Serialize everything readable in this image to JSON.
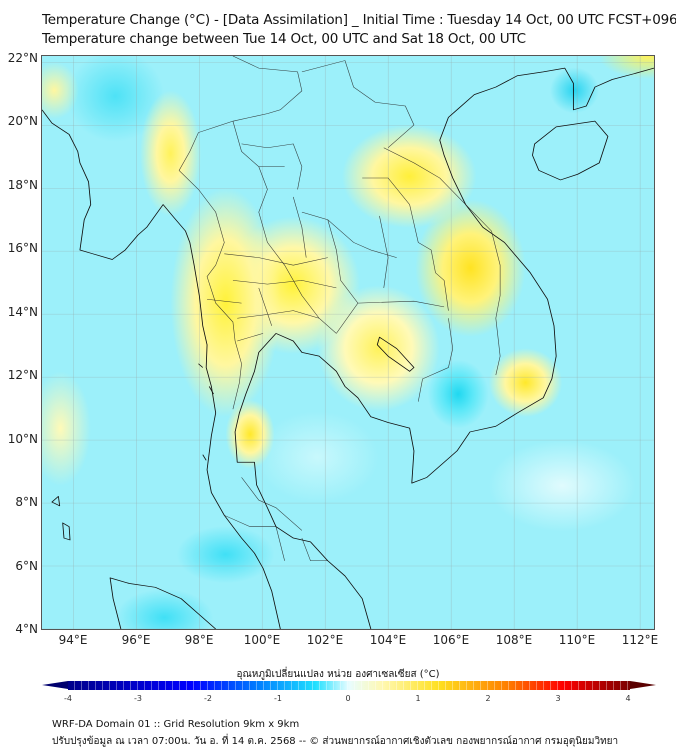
{
  "title": {
    "line1": "Temperature Change (°C) - [Data Assimilation] _ Initial Time : Tuesday 14 Oct, 00 UTC FCST+096",
    "line2": "Temperature change between Tue 14 Oct, 00 UTC and Sat 18 Oct, 00 UTC"
  },
  "map": {
    "lat_labels": [
      "22°N",
      "20°N",
      "18°N",
      "16°N",
      "14°N",
      "12°N",
      "10°N",
      "8°N",
      "6°N",
      "4°N"
    ],
    "lon_labels": [
      "94°E",
      "96°E",
      "98°E",
      "100°E",
      "102°E",
      "104°E",
      "106°E",
      "108°E",
      "110°E",
      "112°E"
    ],
    "lon_range": [
      93,
      112.5
    ],
    "lat_range": [
      4,
      22.2
    ]
  },
  "colorbar": {
    "label": "อุณหภูมิเปลี่ยนแปลง หน่วย องศาเซลเซียส (°C)",
    "ticks": [
      "-4",
      "-3",
      "-2",
      "-1",
      "0",
      "1",
      "2",
      "3",
      "4"
    ],
    "range": [
      -4,
      4
    ],
    "colors": {
      "min": "#00008a",
      "zero": "#ffffff",
      "max": "#7a0000",
      "cool": "#20e0ff",
      "warm": "#ffe020"
    }
  },
  "footer": {
    "line1": "WRF-DA Domain 01 :: Grid Resolution 9km x 9km",
    "line2": "ปรับปรุงข้อมูล ณ เวลา 07:00น. วัน อ. ที่ 14 ต.ค. 2568 -- © ส่วนพยากรณ์อากาศเชิงตัวเลข กองพยากรณ์อากาศ กรมอุตุนิยมวิทยา"
  }
}
